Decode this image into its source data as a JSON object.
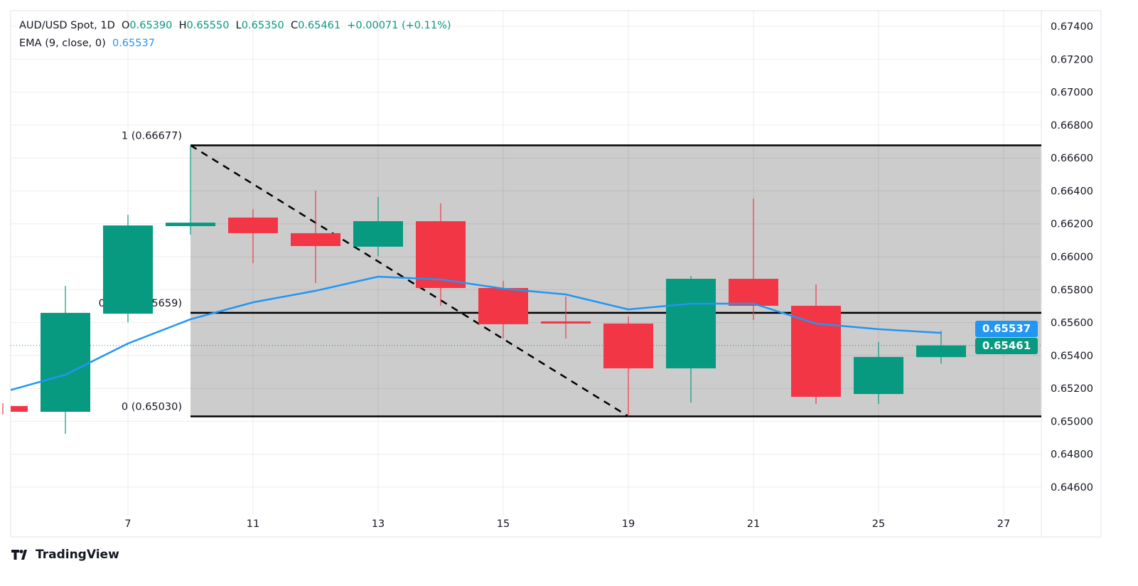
{
  "header": {
    "symbol": "AUD/USD Spot, 1D",
    "open_label": "O",
    "open": "0.65390",
    "high_label": "H",
    "high": "0.65550",
    "low_label": "L",
    "low": "0.65350",
    "close_label": "C",
    "close": "0.65461",
    "change": "+0.00071 (+0.11%)",
    "ema_label": "EMA (9, close, 0)",
    "ema_value": "0.65537"
  },
  "price_tags": {
    "ema": "0.65537",
    "last": "0.65461"
  },
  "branding": "TradingView",
  "colors": {
    "up": "#089981",
    "down": "#f23645",
    "ema": "#2196f3",
    "fib_fill": "#cccccc"
  },
  "chart_data": {
    "type": "candlestick",
    "ylim": [
      0.645,
      0.675
    ],
    "yticks": [
      "0.64600",
      "0.64800",
      "0.65000",
      "0.65200",
      "0.65400",
      "0.65600",
      "0.65800",
      "0.66000",
      "0.66200",
      "0.66400",
      "0.66600",
      "0.66800",
      "0.67000",
      "0.67200",
      "0.67400"
    ],
    "xticks": [
      "7",
      "11",
      "13",
      "15",
      "19",
      "21",
      "25",
      "27"
    ],
    "grid": true,
    "candles": [
      {
        "day": "5",
        "o": 0.65093,
        "h": 0.6511,
        "l": 0.6504,
        "c": 0.65058
      },
      {
        "day": "6",
        "o": 0.65058,
        "h": 0.65823,
        "l": 0.64924,
        "c": 0.65659
      },
      {
        "day": "7",
        "o": 0.65654,
        "h": 0.66255,
        "l": 0.65602,
        "c": 0.6619
      },
      {
        "day": "8",
        "o": 0.66186,
        "h": 0.66677,
        "l": 0.66134,
        "c": 0.66207
      },
      {
        "day": "11",
        "o": 0.66238,
        "h": 0.6629,
        "l": 0.65961,
        "c": 0.66143
      },
      {
        "day": "12",
        "o": 0.66143,
        "h": 0.66402,
        "l": 0.6584,
        "c": 0.66065
      },
      {
        "day": "13",
        "o": 0.66061,
        "h": 0.66363,
        "l": 0.66004,
        "c": 0.66216
      },
      {
        "day": "14",
        "o": 0.66216,
        "h": 0.66324,
        "l": 0.65702,
        "c": 0.6581
      },
      {
        "day": "15",
        "o": 0.6581,
        "h": 0.65853,
        "l": 0.65503,
        "c": 0.6559
      },
      {
        "day": "18",
        "o": 0.65607,
        "h": 0.65758,
        "l": 0.65503,
        "c": 0.65594
      },
      {
        "day": "19",
        "o": 0.65594,
        "h": 0.65637,
        "l": 0.6503,
        "c": 0.65322
      },
      {
        "day": "20",
        "o": 0.65322,
        "h": 0.65883,
        "l": 0.65114,
        "c": 0.65866
      },
      {
        "day": "21",
        "o": 0.65866,
        "h": 0.66354,
        "l": 0.65616,
        "c": 0.65702
      },
      {
        "day": "22",
        "o": 0.65702,
        "h": 0.65832,
        "l": 0.65106,
        "c": 0.65149
      },
      {
        "day": "25",
        "o": 0.65166,
        "h": 0.65482,
        "l": 0.65106,
        "c": 0.65391
      },
      {
        "day": "26",
        "o": 0.6539,
        "h": 0.6555,
        "l": 0.6535,
        "c": 0.65461
      }
    ],
    "ema": {
      "name": "EMA (9, close, 0)",
      "values": [
        0.6519,
        0.65283,
        0.65473,
        0.6562,
        0.65723,
        0.65793,
        0.65879,
        0.65862,
        0.65806,
        0.65771,
        0.6568,
        0.65715,
        0.65715,
        0.65594,
        0.6556,
        0.65537
      ]
    },
    "fib_retracement": {
      "levels": [
        {
          "ratio": "1",
          "price": 0.66677,
          "label": "1 (0.66677)"
        },
        {
          "ratio": "0.382",
          "price": 0.65659,
          "label": "0.382 (0.65659)"
        },
        {
          "ratio": "0",
          "price": 0.6503,
          "label": "0 (0.65030)"
        }
      ],
      "from_day": "8",
      "trend_to_day": "19"
    }
  }
}
